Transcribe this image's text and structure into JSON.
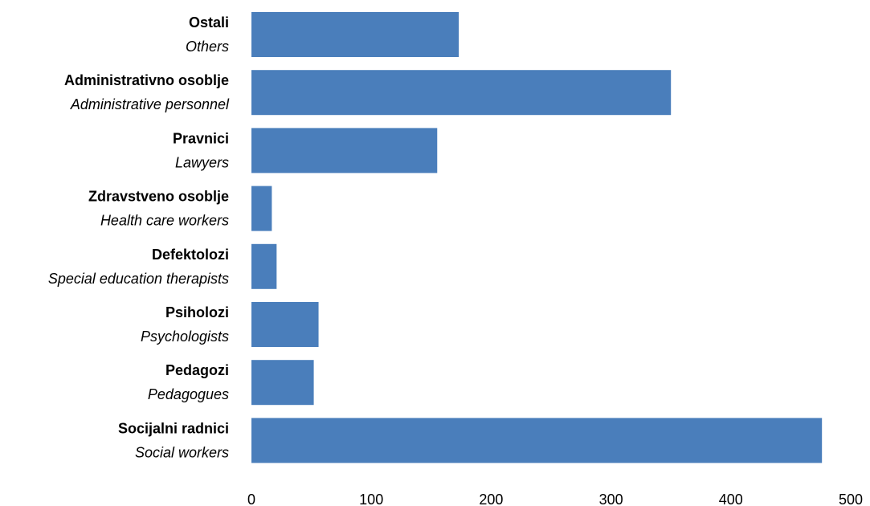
{
  "chart_data": {
    "type": "bar",
    "orientation": "horizontal",
    "categories": [
      {
        "label": "Ostali",
        "sublabel": "Others"
      },
      {
        "label": "Administrativno osoblje",
        "sublabel": "Administrative personnel"
      },
      {
        "label": "Pravnici",
        "sublabel": "Lawyers"
      },
      {
        "label": "Zdravstveno osoblje",
        "sublabel": "Health care workers"
      },
      {
        "label": "Defektolozi",
        "sublabel": "Special education therapists"
      },
      {
        "label": "Psiholozi",
        "sublabel": "Psychologists"
      },
      {
        "label": "Pedagozi",
        "sublabel": "Pedagogues"
      },
      {
        "label": "Socijalni radnici",
        "sublabel": "Social workers"
      }
    ],
    "values": [
      173,
      350,
      155,
      17,
      21,
      56,
      52,
      476
    ],
    "xlim": [
      0,
      500
    ],
    "x_ticks": [
      "0",
      "100",
      "200",
      "300",
      "400",
      "500"
    ],
    "bar_color": "#4a7ebb",
    "grid": false,
    "legend": "none"
  }
}
